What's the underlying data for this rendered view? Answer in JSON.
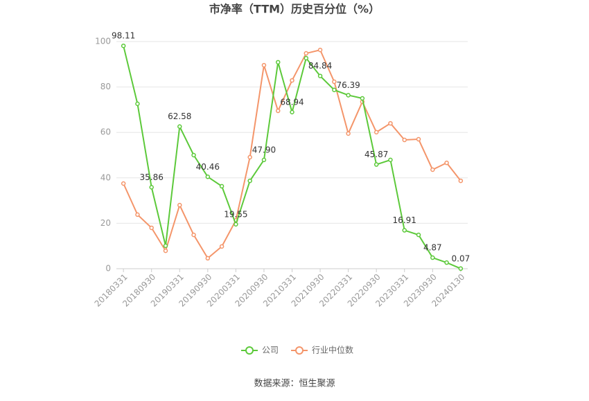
{
  "chart_data": {
    "type": "line",
    "title": "市净率（TTM）历史百分位（%）",
    "categories": [
      "20180331",
      null,
      "20180930",
      null,
      "20190331",
      null,
      "20190930",
      null,
      "20200331",
      null,
      "20200930",
      null,
      "20210331",
      null,
      "20210930",
      null,
      "20220331",
      null,
      "20220930",
      null,
      "20230331",
      null,
      "20230930",
      null,
      "20240130"
    ],
    "series": [
      {
        "name": "公司",
        "color": "#5cc93a",
        "values": [
          98.11,
          72.6,
          35.86,
          10.1,
          62.58,
          50,
          40.46,
          36.3,
          19.55,
          38.7,
          47.9,
          90.9,
          68.94,
          92.7,
          84.84,
          78.7,
          76.39,
          75,
          45.87,
          47.9,
          16.91,
          14.9,
          4.87,
          2.7,
          0.07
        ],
        "value_labels": [
          "98.11",
          null,
          "35.86",
          null,
          "62.58",
          null,
          "40.46",
          null,
          "19.55",
          null,
          "47.90",
          null,
          "68.94",
          null,
          "84.84",
          null,
          "76.39",
          null,
          "45.87",
          null,
          "16.91",
          null,
          "4.87",
          null,
          "0.07"
        ]
      },
      {
        "name": "行业中位数",
        "color": "#f4956a",
        "values": [
          37.5,
          23.8,
          18,
          7.9,
          28,
          14.9,
          4.6,
          9.8,
          21.3,
          49.1,
          89.6,
          69.5,
          82.9,
          94.8,
          96.3,
          82.3,
          59.5,
          73.5,
          60.1,
          64,
          56.7,
          57,
          43.6,
          46.6,
          38.7
        ]
      }
    ],
    "ylim": [
      0,
      100
    ],
    "yticks": [
      0,
      20,
      40,
      60,
      80,
      100
    ],
    "grid": true,
    "source": "数据来源：恒生聚源"
  }
}
